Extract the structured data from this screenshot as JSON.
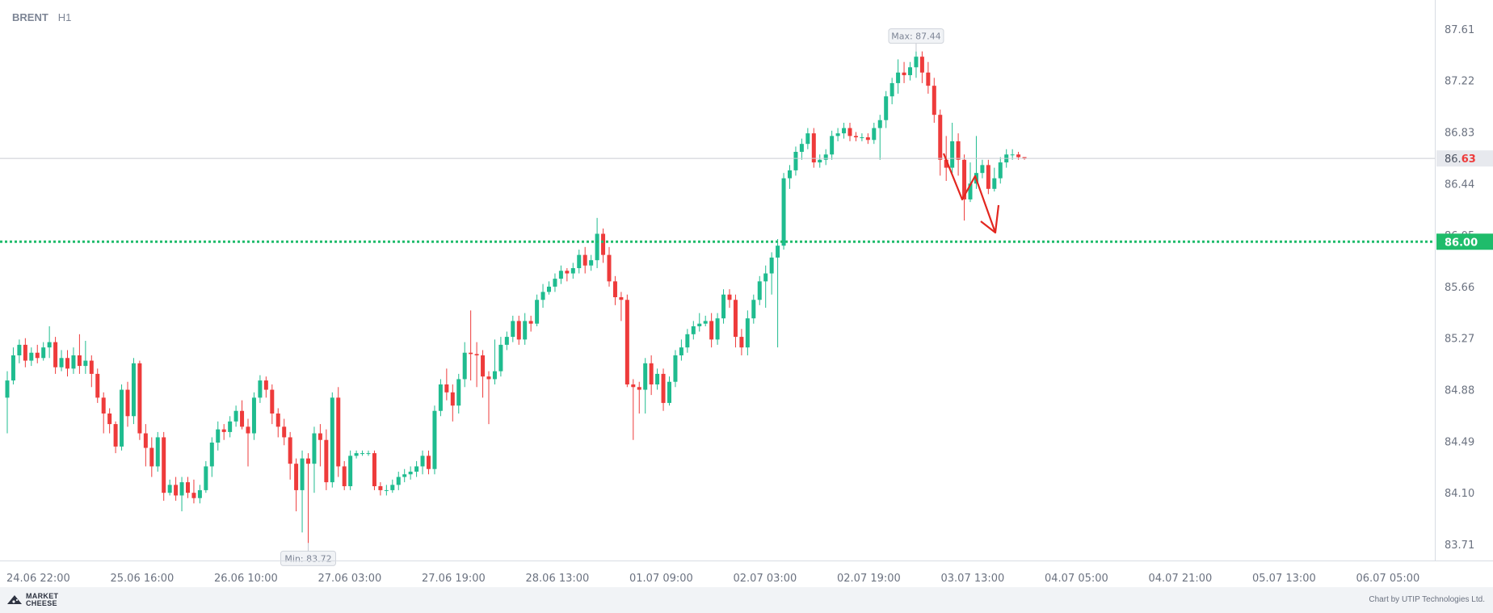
{
  "header": {
    "symbol": "BRENT",
    "timeframe": "H1"
  },
  "footer": {
    "logo_line1": "MARKET",
    "logo_line2": "CHEESE",
    "credit": "Chart by UTIP Technologies Ltd."
  },
  "colors": {
    "up": "#1fbc8f",
    "down": "#ee3b3b",
    "target": "#1fbc6b",
    "arrow": "#e3261f"
  },
  "chart_data": {
    "type": "candlestick",
    "y_ticks": [
      "87.61",
      "87.22",
      "86.83",
      "86.44",
      "86.05",
      "85.66",
      "85.27",
      "84.88",
      "84.49",
      "84.10",
      "83.71"
    ],
    "ylim": [
      83.6,
      87.78
    ],
    "x_ticks": [
      "24.06 22:00",
      "25.06 16:00",
      "26.06 10:00",
      "27.06 03:00",
      "27.06 19:00",
      "28.06 13:00",
      "01.07 09:00",
      "02.07 03:00",
      "02.07 19:00",
      "03.07 13:00",
      "04.07 05:00",
      "04.07 21:00",
      "05.07 13:00",
      "06.07 05:00"
    ],
    "current_price": {
      "int_part": "86.",
      "dec_part": "63",
      "value": 86.63
    },
    "target_level": {
      "label": "86.00",
      "value": 86.0
    },
    "max_label": "Max: 87.44",
    "min_label": "Min: 83.72",
    "candles": [
      [
        84.82,
        84.95,
        84.55,
        85.02
      ],
      [
        84.95,
        85.14,
        84.92,
        85.2
      ],
      [
        85.14,
        85.22,
        85.08,
        85.26
      ],
      [
        85.22,
        85.1,
        85.05,
        85.27
      ],
      [
        85.1,
        85.16,
        85.06,
        85.2
      ],
      [
        85.16,
        85.12,
        85.08,
        85.22
      ],
      [
        85.12,
        85.2,
        85.1,
        85.24
      ],
      [
        85.2,
        85.24,
        85.12,
        85.36
      ],
      [
        85.24,
        85.05,
        85.0,
        85.28
      ],
      [
        85.05,
        85.12,
        85.02,
        85.18
      ],
      [
        85.12,
        85.04,
        84.98,
        85.18
      ],
      [
        85.04,
        85.14,
        85.0,
        85.2
      ],
      [
        85.14,
        85.06,
        85.0,
        85.3
      ],
      [
        85.06,
        85.1,
        85.0,
        85.25
      ],
      [
        85.1,
        85.0,
        84.9,
        85.14
      ],
      [
        85.0,
        84.82,
        84.78,
        85.04
      ],
      [
        84.82,
        84.7,
        84.55,
        84.86
      ],
      [
        84.7,
        84.62,
        84.55,
        84.74
      ],
      [
        84.62,
        84.45,
        84.4,
        84.64
      ],
      [
        84.45,
        84.88,
        84.42,
        84.92
      ],
      [
        84.88,
        84.68,
        84.6,
        84.94
      ],
      [
        84.68,
        85.08,
        84.62,
        85.12
      ],
      [
        85.08,
        84.55,
        84.5,
        85.1
      ],
      [
        84.55,
        84.44,
        84.3,
        84.62
      ],
      [
        84.44,
        84.3,
        84.22,
        84.52
      ],
      [
        84.3,
        84.52,
        84.26,
        84.56
      ],
      [
        84.52,
        84.1,
        84.04,
        84.56
      ],
      [
        84.1,
        84.16,
        84.08,
        84.2
      ],
      [
        84.16,
        84.08,
        84.04,
        84.22
      ],
      [
        84.08,
        84.18,
        83.96,
        84.22
      ],
      [
        84.18,
        84.1,
        84.06,
        84.22
      ],
      [
        84.1,
        84.06,
        84.02,
        84.2
      ],
      [
        84.06,
        84.12,
        84.02,
        84.16
      ],
      [
        84.12,
        84.3,
        84.1,
        84.34
      ],
      [
        84.3,
        84.48,
        84.22,
        84.52
      ],
      [
        84.48,
        84.58,
        84.42,
        84.64
      ],
      [
        84.58,
        84.56,
        84.5,
        84.62
      ],
      [
        84.56,
        84.64,
        84.52,
        84.68
      ],
      [
        84.64,
        84.72,
        84.6,
        84.76
      ],
      [
        84.72,
        84.6,
        84.58,
        84.8
      ],
      [
        84.6,
        84.55,
        84.3,
        84.66
      ],
      [
        84.55,
        84.82,
        84.5,
        84.86
      ],
      [
        84.82,
        84.95,
        84.78,
        84.99
      ],
      [
        84.95,
        84.88,
        84.82,
        84.98
      ],
      [
        84.88,
        84.7,
        84.62,
        84.92
      ],
      [
        84.7,
        84.6,
        84.52,
        84.74
      ],
      [
        84.6,
        84.52,
        84.46,
        84.66
      ],
      [
        84.52,
        84.32,
        84.2,
        84.56
      ],
      [
        84.32,
        84.12,
        83.96,
        84.36
      ],
      [
        84.12,
        84.36,
        83.8,
        84.42
      ],
      [
        84.36,
        84.32,
        83.72,
        84.4
      ],
      [
        84.32,
        84.55,
        84.1,
        84.6
      ],
      [
        84.55,
        84.5,
        84.3,
        84.62
      ],
      [
        84.5,
        84.18,
        84.12,
        84.58
      ],
      [
        84.18,
        84.82,
        84.14,
        84.86
      ],
      [
        84.82,
        84.3,
        84.22,
        84.9
      ],
      [
        84.3,
        84.15,
        84.12,
        84.34
      ],
      [
        84.15,
        84.38,
        84.12,
        84.42
      ],
      [
        84.38,
        84.4,
        84.36,
        84.42
      ],
      [
        84.4,
        84.4,
        84.38,
        84.42
      ],
      [
        84.4,
        84.4,
        84.38,
        84.42
      ],
      [
        84.4,
        84.15,
        84.12,
        84.42
      ],
      [
        84.15,
        84.12,
        84.08,
        84.18
      ],
      [
        84.12,
        84.12,
        84.08,
        84.16
      ],
      [
        84.12,
        84.16,
        84.1,
        84.2
      ],
      [
        84.16,
        84.22,
        84.12,
        84.26
      ],
      [
        84.22,
        84.24,
        84.18,
        84.28
      ],
      [
        84.24,
        84.26,
        84.2,
        84.3
      ],
      [
        84.26,
        84.3,
        84.22,
        84.34
      ],
      [
        84.3,
        84.38,
        84.24,
        84.42
      ],
      [
        84.38,
        84.28,
        84.24,
        84.42
      ],
      [
        84.28,
        84.72,
        84.24,
        84.76
      ],
      [
        84.72,
        84.92,
        84.68,
        84.96
      ],
      [
        84.92,
        84.86,
        84.8,
        85.04
      ],
      [
        84.86,
        84.76,
        84.64,
        84.92
      ],
      [
        84.76,
        84.96,
        84.7,
        85.0
      ],
      [
        84.96,
        85.16,
        84.9,
        85.24
      ],
      [
        85.16,
        85.15,
        84.95,
        85.48
      ],
      [
        85.15,
        85.14,
        84.9,
        85.24
      ],
      [
        85.14,
        84.98,
        84.82,
        85.18
      ],
      [
        84.98,
        84.96,
        84.62,
        85.02
      ],
      [
        84.96,
        85.02,
        84.92,
        85.26
      ],
      [
        85.02,
        85.22,
        84.98,
        85.28
      ],
      [
        85.22,
        85.28,
        85.18,
        85.32
      ],
      [
        85.28,
        85.4,
        85.24,
        85.44
      ],
      [
        85.4,
        85.26,
        85.22,
        85.44
      ],
      [
        85.26,
        85.4,
        85.22,
        85.46
      ],
      [
        85.4,
        85.38,
        85.32,
        85.44
      ],
      [
        85.38,
        85.56,
        85.36,
        85.6
      ],
      [
        85.56,
        85.62,
        85.5,
        85.68
      ],
      [
        85.62,
        85.66,
        85.6,
        85.7
      ],
      [
        85.66,
        85.72,
        85.62,
        85.76
      ],
      [
        85.72,
        85.78,
        85.68,
        85.82
      ],
      [
        85.78,
        85.76,
        85.7,
        85.8
      ],
      [
        85.76,
        85.8,
        85.72,
        85.84
      ],
      [
        85.8,
        85.9,
        85.76,
        85.94
      ],
      [
        85.9,
        85.82,
        85.76,
        85.96
      ],
      [
        85.82,
        85.86,
        85.78,
        85.9
      ],
      [
        85.86,
        86.06,
        85.8,
        86.18
      ],
      [
        86.06,
        85.9,
        85.84,
        86.1
      ],
      [
        85.9,
        85.7,
        85.66,
        85.96
      ],
      [
        85.7,
        85.58,
        85.52,
        85.74
      ],
      [
        85.58,
        85.56,
        85.4,
        85.62
      ],
      [
        85.56,
        84.92,
        84.9,
        85.6
      ],
      [
        84.92,
        84.9,
        84.5,
        84.96
      ],
      [
        84.9,
        84.88,
        84.7,
        84.94
      ],
      [
        84.88,
        85.08,
        84.7,
        85.12
      ],
      [
        85.08,
        84.92,
        84.84,
        85.14
      ],
      [
        84.92,
        85.0,
        84.88,
        85.04
      ],
      [
        85.0,
        84.78,
        84.72,
        85.04
      ],
      [
        84.78,
        84.94,
        84.76,
        84.98
      ],
      [
        84.94,
        85.14,
        84.9,
        85.18
      ],
      [
        85.14,
        85.2,
        85.1,
        85.26
      ],
      [
        85.2,
        85.3,
        85.16,
        85.34
      ],
      [
        85.3,
        85.36,
        85.26,
        85.4
      ],
      [
        85.36,
        85.38,
        85.32,
        85.46
      ],
      [
        85.38,
        85.4,
        85.36,
        85.44
      ],
      [
        85.4,
        85.26,
        85.2,
        85.46
      ],
      [
        85.26,
        85.42,
        85.22,
        85.46
      ],
      [
        85.42,
        85.6,
        85.38,
        85.64
      ],
      [
        85.6,
        85.56,
        85.5,
        85.64
      ],
      [
        85.56,
        85.28,
        85.2,
        85.6
      ],
      [
        85.28,
        85.2,
        85.14,
        85.34
      ],
      [
        85.2,
        85.42,
        85.14,
        85.48
      ],
      [
        85.42,
        85.56,
        85.38,
        85.6
      ],
      [
        85.56,
        85.7,
        85.52,
        85.74
      ],
      [
        85.7,
        85.76,
        85.5,
        85.82
      ],
      [
        85.76,
        85.88,
        85.6,
        85.92
      ],
      [
        85.88,
        85.97,
        85.2,
        86.02
      ],
      [
        85.97,
        86.48,
        85.94,
        86.52
      ],
      [
        86.48,
        86.54,
        86.4,
        86.58
      ],
      [
        86.54,
        86.68,
        86.5,
        86.72
      ],
      [
        86.68,
        86.74,
        86.62,
        86.78
      ],
      [
        86.74,
        86.82,
        86.7,
        86.86
      ],
      [
        86.82,
        86.6,
        86.56,
        86.86
      ],
      [
        86.6,
        86.62,
        86.56,
        86.66
      ],
      [
        86.62,
        86.66,
        86.58,
        86.7
      ],
      [
        86.66,
        86.8,
        86.62,
        86.84
      ],
      [
        86.8,
        86.82,
        86.76,
        86.86
      ],
      [
        86.82,
        86.86,
        86.78,
        86.9
      ],
      [
        86.86,
        86.8,
        86.76,
        86.9
      ],
      [
        86.8,
        86.79,
        86.76,
        86.83
      ],
      [
        86.79,
        86.79,
        86.76,
        86.82
      ],
      [
        86.79,
        86.77,
        86.74,
        86.82
      ],
      [
        86.77,
        86.86,
        86.74,
        86.9
      ],
      [
        86.86,
        86.92,
        86.62,
        86.96
      ],
      [
        86.92,
        87.1,
        86.86,
        87.14
      ],
      [
        87.1,
        87.2,
        87.04,
        87.24
      ],
      [
        87.2,
        87.28,
        87.12,
        87.38
      ],
      [
        87.28,
        87.26,
        87.2,
        87.36
      ],
      [
        87.26,
        87.32,
        87.22,
        87.36
      ],
      [
        87.32,
        87.4,
        87.24,
        87.44
      ],
      [
        87.4,
        87.28,
        87.2,
        87.44
      ],
      [
        87.28,
        87.18,
        87.12,
        87.36
      ],
      [
        87.18,
        86.96,
        86.9,
        87.24
      ],
      [
        86.96,
        86.62,
        86.5,
        87.0
      ],
      [
        86.62,
        86.56,
        86.46,
        86.8
      ],
      [
        86.56,
        86.76,
        86.52,
        86.9
      ],
      [
        86.76,
        86.62,
        86.5,
        86.82
      ],
      [
        86.62,
        86.32,
        86.16,
        86.66
      ],
      [
        86.32,
        86.44,
        86.3,
        86.6
      ],
      [
        86.44,
        86.52,
        86.4,
        86.8
      ],
      [
        86.52,
        86.58,
        86.48,
        86.62
      ],
      [
        86.58,
        86.4,
        86.36,
        86.62
      ],
      [
        86.4,
        86.48,
        86.38,
        86.56
      ],
      [
        86.48,
        86.6,
        86.44,
        86.64
      ],
      [
        86.6,
        86.66,
        86.56,
        86.7
      ],
      [
        86.66,
        86.66,
        86.62,
        86.7
      ],
      [
        86.66,
        86.64,
        86.62,
        86.68
      ],
      [
        86.64,
        86.63,
        86.62,
        86.64
      ]
    ]
  }
}
